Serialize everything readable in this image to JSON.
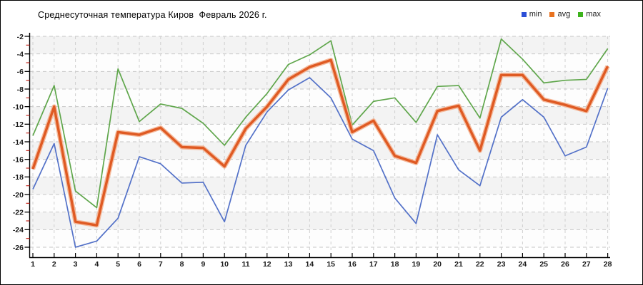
{
  "chart_data": {
    "type": "line",
    "title": "Среднесуточная температура Киров  Февраль 2026 г.",
    "x": [
      1,
      2,
      3,
      4,
      5,
      6,
      7,
      8,
      9,
      10,
      11,
      12,
      13,
      14,
      15,
      16,
      17,
      18,
      19,
      20,
      21,
      22,
      23,
      24,
      25,
      26,
      27,
      28
    ],
    "series": [
      {
        "name": "min",
        "color": "#5371c8",
        "legend_color": "#2b4fd7",
        "values": [
          -19.4,
          -14.2,
          -26.0,
          -25.3,
          -22.7,
          -15.7,
          -16.5,
          -18.7,
          -18.6,
          -23.1,
          -14.4,
          -10.6,
          -8.1,
          -6.7,
          -9.0,
          -13.7,
          -15.0,
          -20.4,
          -23.3,
          -13.2,
          -17.2,
          -19.0,
          -11.2,
          -9.2,
          -11.2,
          -15.6,
          -14.6,
          -7.9
        ]
      },
      {
        "name": "avg",
        "color": "#df5a23",
        "halo_color": "#f3ae8b",
        "legend_color": "#e8721f",
        "values": [
          -17.1,
          -10.0,
          -23.1,
          -23.5,
          -12.9,
          -13.2,
          -12.4,
          -14.6,
          -14.7,
          -16.8,
          -12.5,
          -10.0,
          -6.9,
          -5.5,
          -4.7,
          -12.9,
          -11.6,
          -15.6,
          -16.4,
          -10.5,
          -9.9,
          -15.0,
          -6.4,
          -6.4,
          -9.2,
          -9.8,
          -10.5,
          -5.4
        ]
      },
      {
        "name": "max",
        "color": "#5fa64b",
        "legend_color": "#3db31c",
        "values": [
          -13.3,
          -7.6,
          -19.6,
          -21.5,
          -5.7,
          -11.7,
          -9.7,
          -10.2,
          -11.9,
          -14.4,
          -11.2,
          -8.5,
          -5.2,
          -4.1,
          -2.5,
          -12.1,
          -9.4,
          -9.0,
          -11.8,
          -7.7,
          -7.6,
          -11.3,
          -2.3,
          -4.6,
          -7.3,
          -7.0,
          -6.9,
          -3.4
        ]
      }
    ],
    "y_axis": {
      "top": -2,
      "bottom": -26,
      "major_step": 2,
      "minor_step": 1,
      "labels": [
        "-2",
        "-4",
        "-6",
        "-8",
        "-10",
        "-12",
        "-14",
        "-16",
        "-18",
        "-20",
        "-22",
        "-24",
        "-26"
      ],
      "minor_tick_color": "#c5271d",
      "axis_color": "#000000"
    },
    "x_axis": {
      "labels": [
        "1",
        "2",
        "3",
        "4",
        "5",
        "6",
        "7",
        "8",
        "9",
        "10",
        "11",
        "12",
        "13",
        "14",
        "15",
        "16",
        "17",
        "18",
        "19",
        "20",
        "21",
        "22",
        "23",
        "24",
        "25",
        "26",
        "27",
        "28"
      ],
      "axis_color": "#000000"
    },
    "grid": {
      "on": true,
      "h_color": "#c6c6c6",
      "v_color": "#cfcfcf",
      "band_gray": "#f3f3f3",
      "band_white": "#fdfdfd"
    },
    "legend_position": "top-right",
    "ylim": [
      -26,
      -2
    ],
    "xlim": [
      1,
      28
    ]
  }
}
